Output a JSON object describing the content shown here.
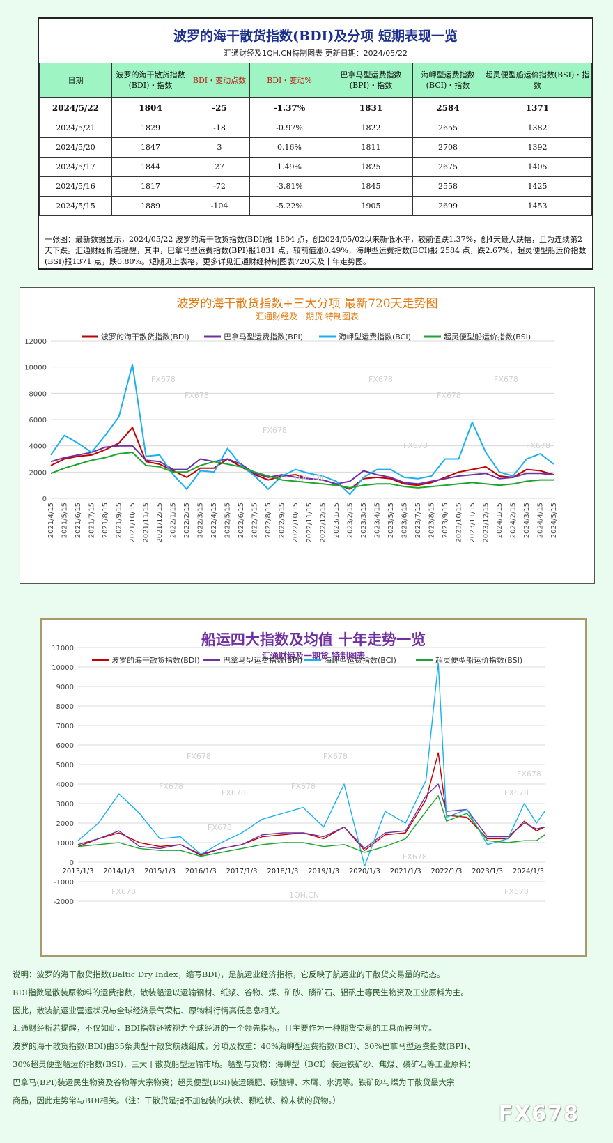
{
  "table": {
    "title": "波罗的海干散货指数(BDI)及分项  短期表现一览",
    "subtitle": "汇通财经及1QH.CN特制图表    更新日期：2024/05/22",
    "headers": [
      "日期",
      "波罗的海干散货指数(BDI)・指数",
      "BDI・变动点数",
      "BDI・变动%",
      "巴拿马型运费指数(BPI)・指数",
      "海岬型运费指数(BCI)・指数",
      "超灵便型船运价指数(BSI)・指数"
    ],
    "rows": [
      [
        "2024/5/22",
        "1804",
        "-25",
        "-1.37%",
        "1831",
        "2584",
        "1371"
      ],
      [
        "2024/5/21",
        "1829",
        "-18",
        "-0.97%",
        "1822",
        "2655",
        "1382"
      ],
      [
        "2024/5/20",
        "1847",
        "3",
        "0.16%",
        "1811",
        "2708",
        "1392"
      ],
      [
        "2024/5/17",
        "1844",
        "27",
        "1.49%",
        "1825",
        "2675",
        "1405"
      ],
      [
        "2024/5/16",
        "1817",
        "-72",
        "-3.81%",
        "1845",
        "2558",
        "1425"
      ],
      [
        "2024/5/15",
        "1889",
        "-104",
        "-5.22%",
        "1905",
        "2699",
        "1453"
      ]
    ],
    "note": "一张图：最新数据显示，2024/05/22 波罗的海干散货指数(BDI)报 1804 点，创2024/05/02以来新低水平，较前值跌1.37%，创4天最大跌幅，且为连续第2天下跌。汇通财经析若提醒，其中，巴拿马型运费指数(BPI)报1831 点，较前值涨0.49%，海岬型运费指数(BCI)报 2584 点，跌2.67%，超灵便型船运价指数(BSI)报1371 点，跌0.80%。短期见上表格，更多详见汇通财经特制图表720天及十年走势图。"
  },
  "chart_data": [
    {
      "type": "line",
      "title": "波罗的海干散货指数+三大分项  最新720天走势图",
      "subtitle": "汇通财经及一期货  特制图表",
      "ylim": [
        0,
        12000
      ],
      "yticks": [
        0,
        2000,
        4000,
        6000,
        8000,
        10000,
        12000
      ],
      "grid": true,
      "legend": "top",
      "x": [
        "2021/4/15",
        "2021/5/15",
        "2021/6/15",
        "2021/7/15",
        "2021/8/15",
        "2021/9/15",
        "2021/10/15",
        "2021/11/15",
        "2021/12/15",
        "2022/1/15",
        "2022/2/15",
        "2022/3/15",
        "2022/4/15",
        "2022/5/15",
        "2022/6/15",
        "2022/7/15",
        "2022/8/15",
        "2022/9/15",
        "2022/10/15",
        "2022/11/15",
        "2022/12/15",
        "2023/1/15",
        "2023/2/15",
        "2023/3/15",
        "2023/4/15",
        "2023/5/15",
        "2023/6/15",
        "2023/7/15",
        "2023/8/15",
        "2023/9/15",
        "2023/10/15",
        "2023/11/15",
        "2023/12/15",
        "2024/1/15",
        "2024/2/15",
        "2024/3/15",
        "2024/4/15",
        "2024/5/15"
      ],
      "series": [
        {
          "name": "波罗的海干散货指数(BDI)",
          "color": "#c00000",
          "values": [
            2500,
            3000,
            3200,
            3300,
            3700,
            4200,
            5400,
            2800,
            2600,
            2100,
            1600,
            2300,
            2300,
            3000,
            2400,
            1800,
            1400,
            1700,
            1800,
            1500,
            1400,
            1100,
            700,
            1500,
            1600,
            1500,
            1100,
            1000,
            1200,
            1600,
            2000,
            2200,
            2400,
            1700,
            1600,
            2200,
            2100,
            1800
          ]
        },
        {
          "name": "巴拿马型运费指数(BPI)",
          "color": "#7030a0",
          "values": [
            2800,
            3100,
            3300,
            3500,
            3900,
            4000,
            4000,
            2900,
            2800,
            2200,
            2200,
            3000,
            2800,
            3000,
            2600,
            1900,
            1600,
            1800,
            1600,
            1500,
            1400,
            1100,
            1300,
            2100,
            1800,
            1600,
            1200,
            1100,
            1300,
            1500,
            1700,
            1800,
            1900,
            1500,
            1600,
            1900,
            1900,
            1800
          ]
        },
        {
          "name": "海岬型运费指数(BCI)",
          "color": "#1ab0f0",
          "values": [
            3300,
            4800,
            4200,
            3500,
            4800,
            6200,
            10200,
            3200,
            3300,
            1800,
            700,
            2100,
            2000,
            3800,
            2500,
            1700,
            700,
            1700,
            2200,
            1900,
            1700,
            1300,
            300,
            1600,
            2200,
            2200,
            1600,
            1500,
            1700,
            3000,
            3000,
            5800,
            3500,
            2000,
            1700,
            3000,
            3400,
            2600
          ]
        },
        {
          "name": "超灵便型船运价指数(BSI)",
          "color": "#1fa330",
          "values": [
            1900,
            2300,
            2600,
            2900,
            3100,
            3400,
            3500,
            2500,
            2400,
            2000,
            2000,
            2500,
            2800,
            2600,
            2400,
            2000,
            1700,
            1400,
            1300,
            1200,
            1100,
            1000,
            800,
            1000,
            1100,
            1100,
            900,
            800,
            900,
            1000,
            1100,
            1200,
            1100,
            1000,
            1100,
            1300,
            1400,
            1400
          ]
        }
      ]
    },
    {
      "type": "line",
      "title": "船运四大指数及均值 十年走势一览",
      "subtitle": "汇通财经及一期货 特制图表",
      "ylim": [
        -2000,
        11000
      ],
      "yticks": [
        -2000,
        -1000,
        0,
        1000,
        2000,
        3000,
        4000,
        5000,
        6000,
        7000,
        8000,
        9000,
        10000,
        11000
      ],
      "grid": true,
      "legend": "top",
      "xticks": [
        "2013/1/3",
        "2014/1/3",
        "2015/1/3",
        "2016/1/3",
        "2017/1/3",
        "2018/1/3",
        "2019/1/3",
        "2020/1/3",
        "2021/1/3",
        "2022/1/3",
        "2023/1/3",
        "2024/1/3"
      ],
      "x": [
        2013.0,
        2013.5,
        2014.0,
        2014.5,
        2015.0,
        2015.5,
        2016.0,
        2016.5,
        2017.0,
        2017.5,
        2018.0,
        2018.5,
        2019.0,
        2019.5,
        2020.0,
        2020.5,
        2021.0,
        2021.5,
        2021.8,
        2022.0,
        2022.5,
        2023.0,
        2023.5,
        2023.9,
        2024.2,
        2024.4
      ],
      "series": [
        {
          "name": "波罗的海干散货指数(BDI)",
          "color": "#c00000",
          "values": [
            800,
            1200,
            1500,
            1000,
            800,
            900,
            350,
            700,
            900,
            1300,
            1400,
            1500,
            1200,
            1800,
            600,
            1400,
            1500,
            3200,
            5600,
            2400,
            2300,
            1200,
            1200,
            2100,
            1600,
            1800
          ]
        },
        {
          "name": "巴拿马型运费指数(BPI)",
          "color": "#7030a0",
          "values": [
            900,
            1200,
            1600,
            800,
            700,
            900,
            400,
            700,
            900,
            1400,
            1500,
            1500,
            1300,
            1800,
            700,
            1500,
            1600,
            3400,
            4000,
            2600,
            2700,
            1300,
            1300,
            2000,
            1700,
            1800
          ]
        },
        {
          "name": "海岬型运费指数(BCI)",
          "color": "#1ab0f0",
          "values": [
            1100,
            2000,
            3500,
            2500,
            1200,
            1300,
            400,
            1000,
            1500,
            2200,
            2500,
            2800,
            1800,
            4000,
            -200,
            2600,
            2000,
            4200,
            10200,
            2300,
            2700,
            900,
            1200,
            3000,
            2000,
            2600
          ]
        },
        {
          "name": "超灵便型船运价指数(BSI)",
          "color": "#1fa330",
          "values": [
            800,
            900,
            1000,
            700,
            600,
            600,
            300,
            500,
            700,
            900,
            1000,
            1000,
            800,
            900,
            500,
            800,
            1200,
            2600,
            3400,
            2100,
            2500,
            1100,
            1000,
            1100,
            1100,
            1400
          ]
        }
      ]
    }
  ],
  "description": [
    "说明：波罗的海干散货指数(Baltic Dry Index，缩写BDI)，是航运业经济指标，它反映了航运业的干散货交易量的动态。",
    "BDI指数是散装原物料的运费指数，散装船运以运输钢材、纸浆、谷物、煤、矿砂、磷矿石、铝矾土等民生物资及工业原料为主。",
    "因此，散装航运业营运状况与全球经济景气荣枯、原物料行情高低息息相关。",
    "汇通财经析若提醒，不仅如此，BDI指数还被视为全球经济的一个领先指标，且主要作为一种期货交易的工具而被创立。",
    "波罗的海干散货指数(BDI)由35条典型干散货航线组成，分项及权重：40%海岬型运费指数(BCI)、30%巴拿马型运费指数(BPI)、",
    "30%超灵便型船运价指数(BSI)，三大干散货船型运输市场。船型与货物：海岬型（BCI）装运铁矿砂、焦煤、磷矿石等工业原料；",
    "巴拿马(BPI)装运民生物资及谷物等大宗物资；超灵便型(BSI)装运磷肥、碳酸钾、木屑、水泥等。铁矿砂与煤为干散货最大宗",
    "商品，因此走势常与BDI相关。（注：干散货是指不加包装的块状、颗粒状、粉末状的货物。）"
  ],
  "watermark": "FX678",
  "chart_watermarks": [
    "FX678",
    "1QH.CN"
  ]
}
